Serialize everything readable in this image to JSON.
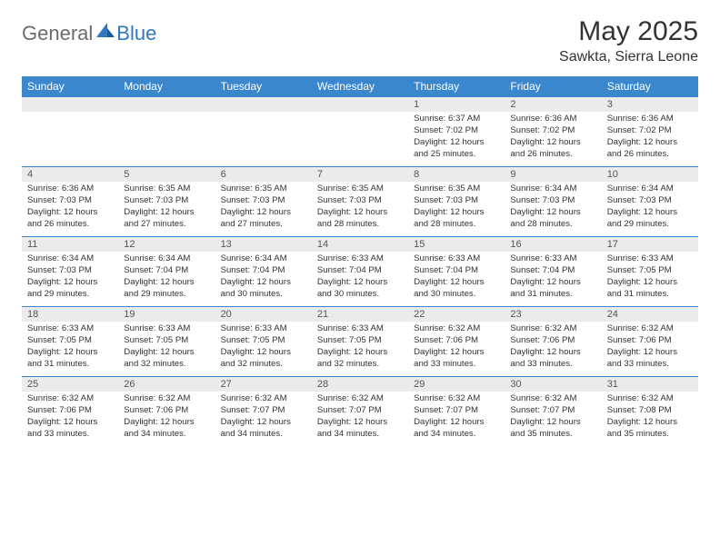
{
  "logo": {
    "textA": "General",
    "textB": "Blue"
  },
  "title": "May 2025",
  "location": "Sawkta, Sierra Leone",
  "header_color": "#3a87cd",
  "daybar_color": "#ebebeb",
  "days_of_week": [
    "Sunday",
    "Monday",
    "Tuesday",
    "Wednesday",
    "Thursday",
    "Friday",
    "Saturday"
  ],
  "weeks": [
    [
      {
        "n": "",
        "sr": "",
        "ss": "",
        "dl": ""
      },
      {
        "n": "",
        "sr": "",
        "ss": "",
        "dl": ""
      },
      {
        "n": "",
        "sr": "",
        "ss": "",
        "dl": ""
      },
      {
        "n": "",
        "sr": "",
        "ss": "",
        "dl": ""
      },
      {
        "n": "1",
        "sr": "6:37 AM",
        "ss": "7:02 PM",
        "dl": "12 hours and 25 minutes."
      },
      {
        "n": "2",
        "sr": "6:36 AM",
        "ss": "7:02 PM",
        "dl": "12 hours and 26 minutes."
      },
      {
        "n": "3",
        "sr": "6:36 AM",
        "ss": "7:02 PM",
        "dl": "12 hours and 26 minutes."
      }
    ],
    [
      {
        "n": "4",
        "sr": "6:36 AM",
        "ss": "7:03 PM",
        "dl": "12 hours and 26 minutes."
      },
      {
        "n": "5",
        "sr": "6:35 AM",
        "ss": "7:03 PM",
        "dl": "12 hours and 27 minutes."
      },
      {
        "n": "6",
        "sr": "6:35 AM",
        "ss": "7:03 PM",
        "dl": "12 hours and 27 minutes."
      },
      {
        "n": "7",
        "sr": "6:35 AM",
        "ss": "7:03 PM",
        "dl": "12 hours and 28 minutes."
      },
      {
        "n": "8",
        "sr": "6:35 AM",
        "ss": "7:03 PM",
        "dl": "12 hours and 28 minutes."
      },
      {
        "n": "9",
        "sr": "6:34 AM",
        "ss": "7:03 PM",
        "dl": "12 hours and 28 minutes."
      },
      {
        "n": "10",
        "sr": "6:34 AM",
        "ss": "7:03 PM",
        "dl": "12 hours and 29 minutes."
      }
    ],
    [
      {
        "n": "11",
        "sr": "6:34 AM",
        "ss": "7:03 PM",
        "dl": "12 hours and 29 minutes."
      },
      {
        "n": "12",
        "sr": "6:34 AM",
        "ss": "7:04 PM",
        "dl": "12 hours and 29 minutes."
      },
      {
        "n": "13",
        "sr": "6:34 AM",
        "ss": "7:04 PM",
        "dl": "12 hours and 30 minutes."
      },
      {
        "n": "14",
        "sr": "6:33 AM",
        "ss": "7:04 PM",
        "dl": "12 hours and 30 minutes."
      },
      {
        "n": "15",
        "sr": "6:33 AM",
        "ss": "7:04 PM",
        "dl": "12 hours and 30 minutes."
      },
      {
        "n": "16",
        "sr": "6:33 AM",
        "ss": "7:04 PM",
        "dl": "12 hours and 31 minutes."
      },
      {
        "n": "17",
        "sr": "6:33 AM",
        "ss": "7:05 PM",
        "dl": "12 hours and 31 minutes."
      }
    ],
    [
      {
        "n": "18",
        "sr": "6:33 AM",
        "ss": "7:05 PM",
        "dl": "12 hours and 31 minutes."
      },
      {
        "n": "19",
        "sr": "6:33 AM",
        "ss": "7:05 PM",
        "dl": "12 hours and 32 minutes."
      },
      {
        "n": "20",
        "sr": "6:33 AM",
        "ss": "7:05 PM",
        "dl": "12 hours and 32 minutes."
      },
      {
        "n": "21",
        "sr": "6:33 AM",
        "ss": "7:05 PM",
        "dl": "12 hours and 32 minutes."
      },
      {
        "n": "22",
        "sr": "6:32 AM",
        "ss": "7:06 PM",
        "dl": "12 hours and 33 minutes."
      },
      {
        "n": "23",
        "sr": "6:32 AM",
        "ss": "7:06 PM",
        "dl": "12 hours and 33 minutes."
      },
      {
        "n": "24",
        "sr": "6:32 AM",
        "ss": "7:06 PM",
        "dl": "12 hours and 33 minutes."
      }
    ],
    [
      {
        "n": "25",
        "sr": "6:32 AM",
        "ss": "7:06 PM",
        "dl": "12 hours and 33 minutes."
      },
      {
        "n": "26",
        "sr": "6:32 AM",
        "ss": "7:06 PM",
        "dl": "12 hours and 34 minutes."
      },
      {
        "n": "27",
        "sr": "6:32 AM",
        "ss": "7:07 PM",
        "dl": "12 hours and 34 minutes."
      },
      {
        "n": "28",
        "sr": "6:32 AM",
        "ss": "7:07 PM",
        "dl": "12 hours and 34 minutes."
      },
      {
        "n": "29",
        "sr": "6:32 AM",
        "ss": "7:07 PM",
        "dl": "12 hours and 34 minutes."
      },
      {
        "n": "30",
        "sr": "6:32 AM",
        "ss": "7:07 PM",
        "dl": "12 hours and 35 minutes."
      },
      {
        "n": "31",
        "sr": "6:32 AM",
        "ss": "7:08 PM",
        "dl": "12 hours and 35 minutes."
      }
    ]
  ],
  "labels": {
    "sunrise": "Sunrise:",
    "sunset": "Sunset:",
    "daylight": "Daylight:"
  }
}
